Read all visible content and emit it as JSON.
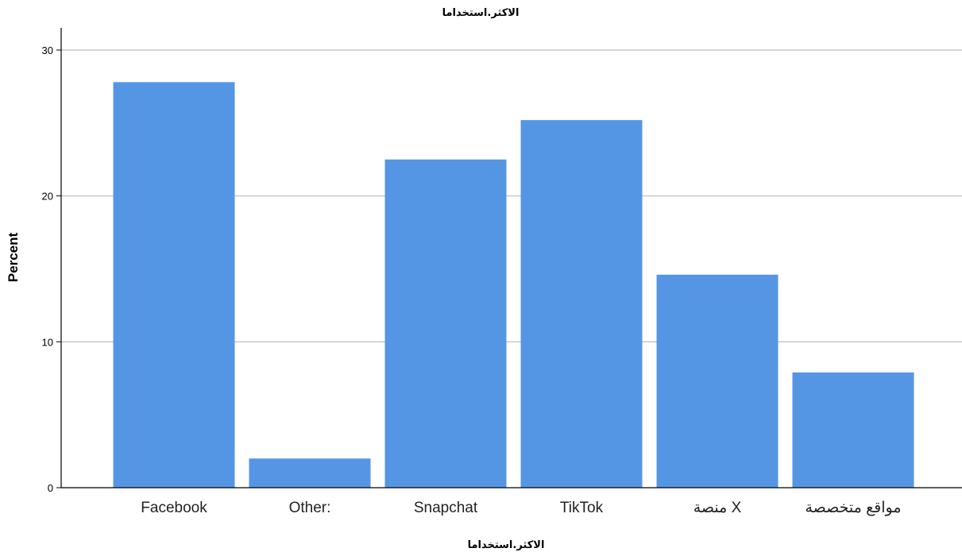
{
  "chart_data": {
    "type": "bar",
    "title": "الاكثر.استخداما",
    "xlabel": "الاكثر.استخداما",
    "ylabel": "Percent",
    "categories": [
      "Facebook",
      "Other:",
      "Snapchat",
      "TikTok",
      "منصة X",
      "مواقع متخصصة"
    ],
    "values": [
      27.8,
      2.0,
      22.5,
      25.2,
      14.6,
      7.9
    ],
    "ylim": [
      0,
      30
    ],
    "yticks": [
      0,
      10,
      20,
      30
    ],
    "grid": true,
    "legend": "none",
    "colors": {
      "bar": "#5596e4",
      "grid": "#c8c8c8",
      "axis": "#000000"
    }
  }
}
